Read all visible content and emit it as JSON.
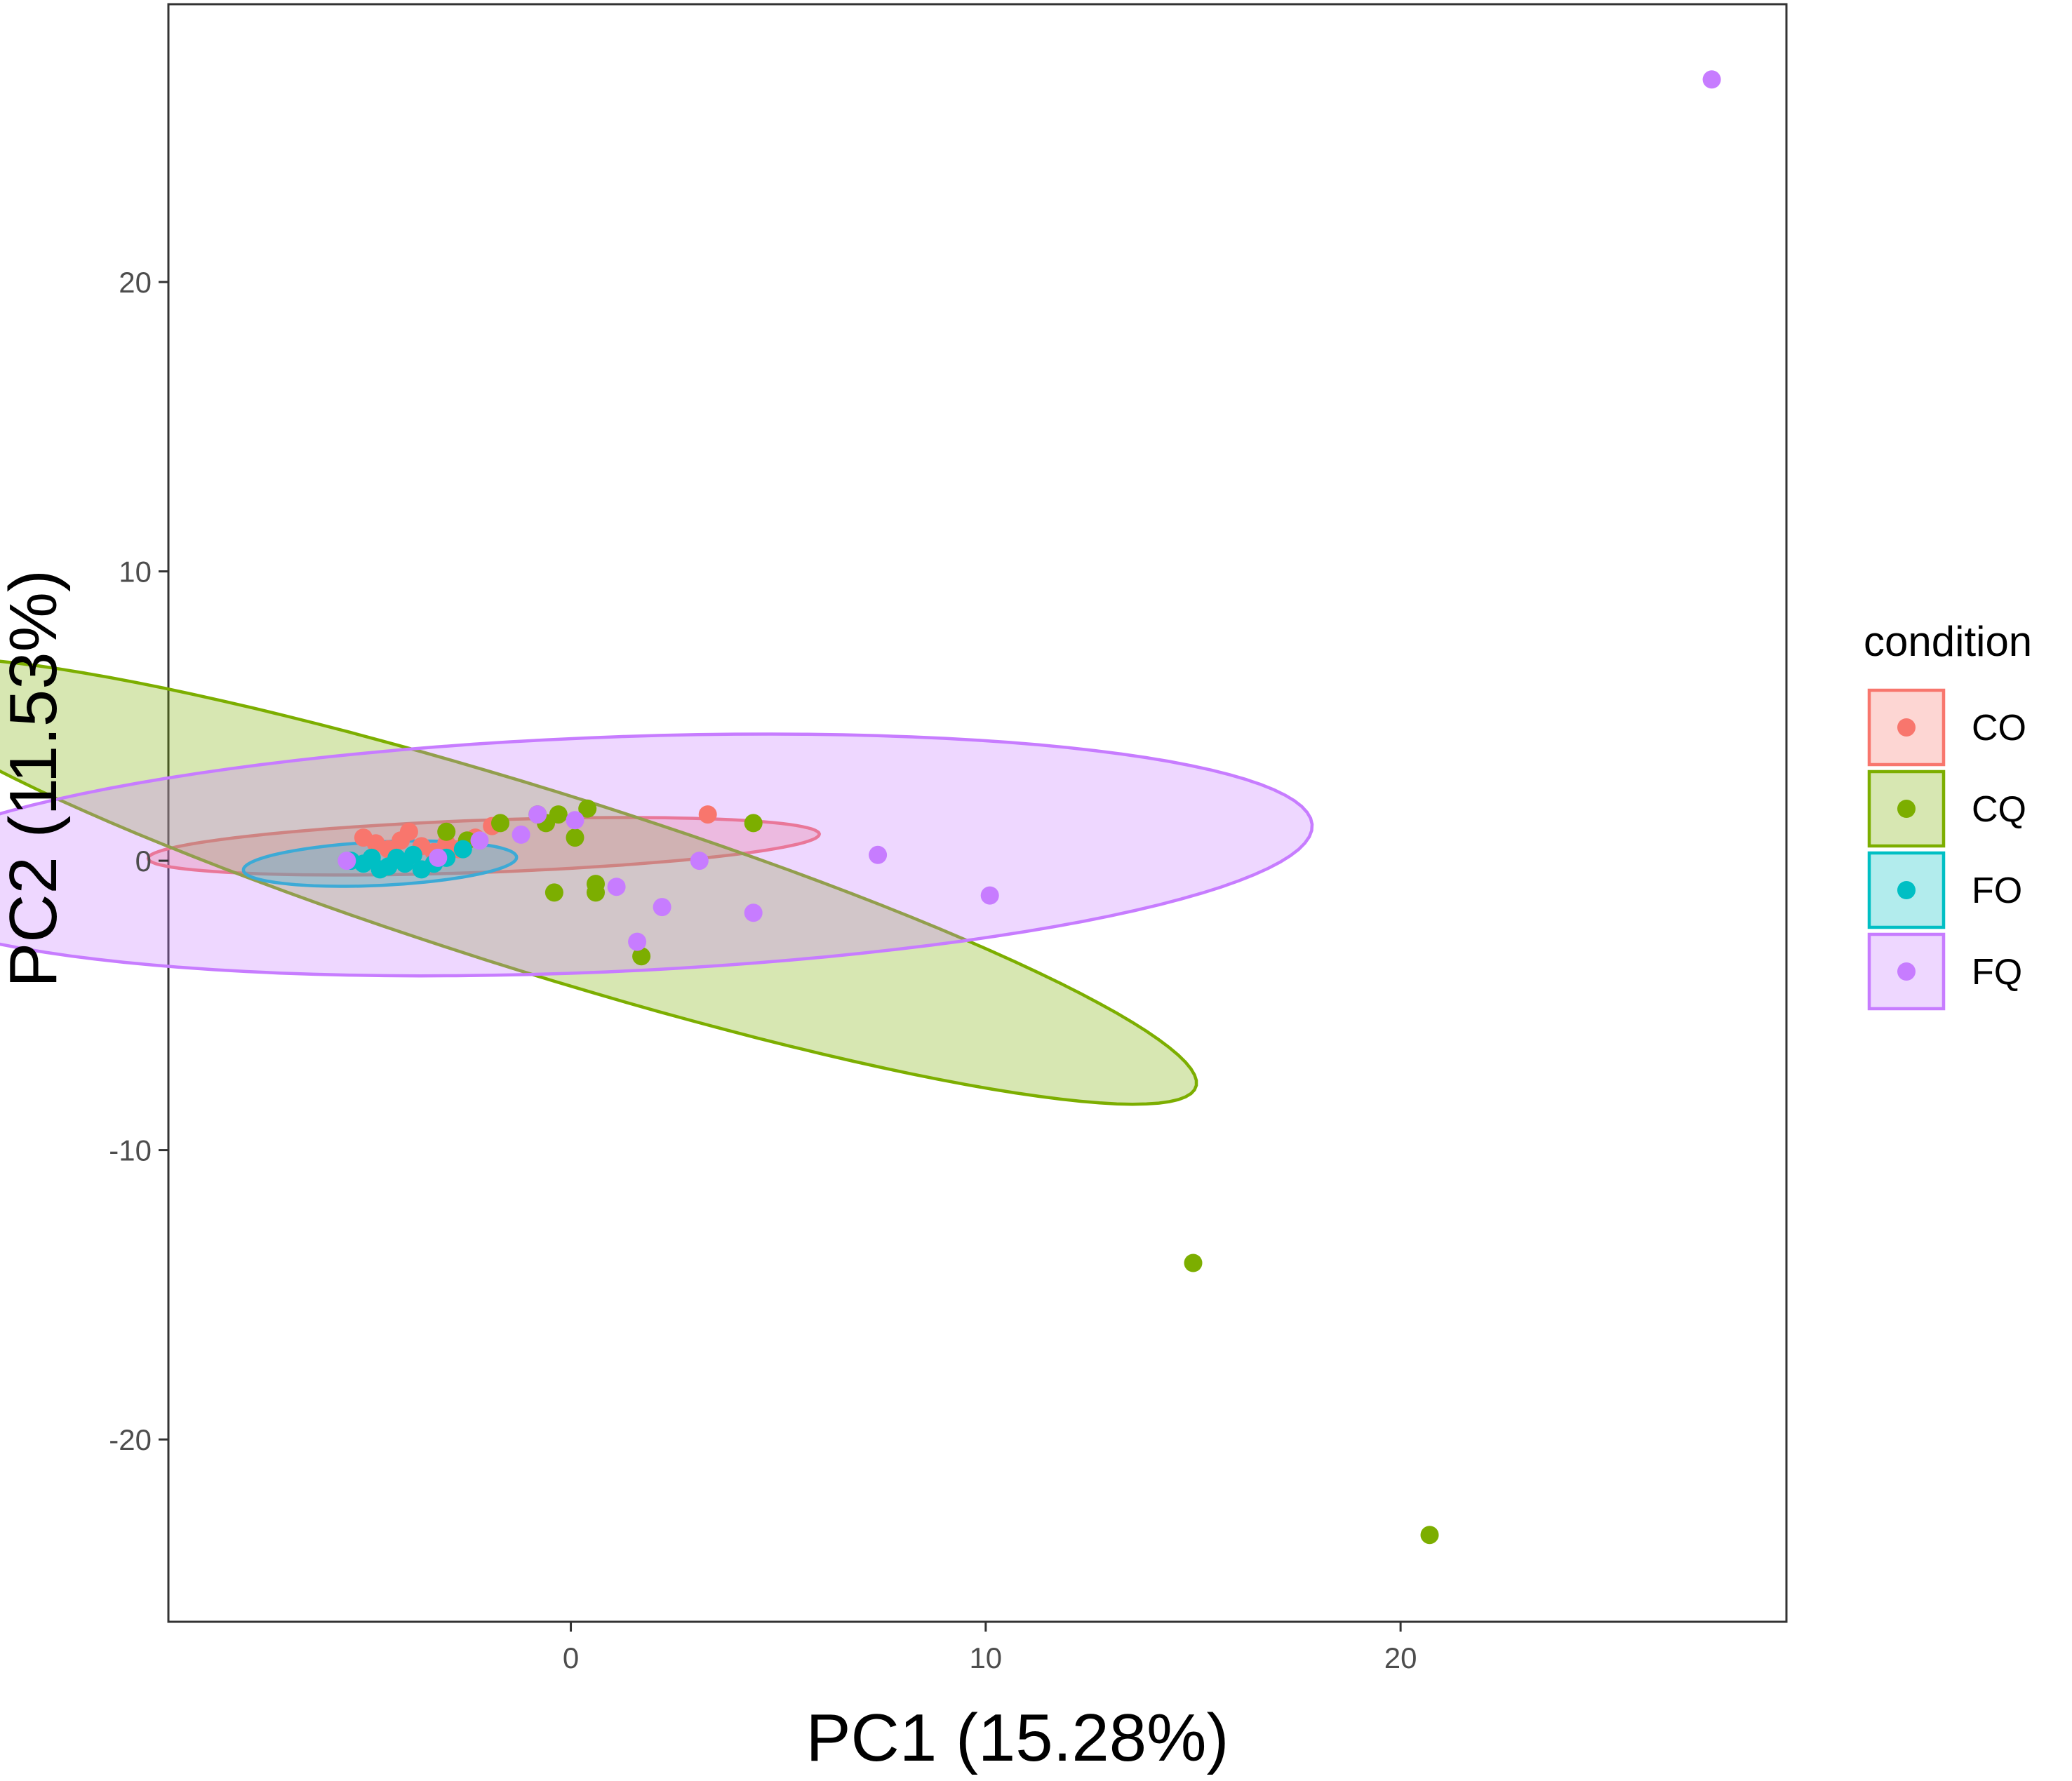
{
  "chart_data": {
    "type": "scatter",
    "xlabel": "PC1 (15.28%)",
    "ylabel": "PC2 (11.53%)",
    "xlim": [
      -9.7,
      29.3
    ],
    "ylim": [
      -26.3,
      29.6
    ],
    "x_ticks": [
      0,
      10,
      20
    ],
    "y_ticks": [
      -20,
      -10,
      0,
      10,
      20
    ],
    "grid": false,
    "legend": {
      "title": "condition",
      "position": "right"
    },
    "series": [
      {
        "name": "CO",
        "color": "#F8766D",
        "points": [
          [
            -5.0,
            0.8
          ],
          [
            -4.7,
            0.6
          ],
          [
            -4.4,
            0.4
          ],
          [
            -4.1,
            0.7
          ],
          [
            -3.9,
            1.0
          ],
          [
            -3.6,
            0.5
          ],
          [
            -3.3,
            0.3
          ],
          [
            -3.0,
            0.6
          ],
          [
            -2.7,
            0.4
          ],
          [
            -2.3,
            0.8
          ],
          [
            -1.9,
            1.2
          ],
          [
            3.3,
            1.6
          ]
        ],
        "ellipse": {
          "center": [
            -2.1,
            0.5
          ],
          "rx": 8.1,
          "ry": 0.9,
          "angle_deg": 3
        }
      },
      {
        "name": "CQ",
        "color": "#7CAE00",
        "points": [
          [
            -3.0,
            1.0
          ],
          [
            -2.5,
            0.7
          ],
          [
            -1.7,
            1.3
          ],
          [
            -0.8,
            1.6
          ],
          [
            -0.6,
            1.3
          ],
          [
            -0.3,
            1.6
          ],
          [
            0.1,
            0.8
          ],
          [
            0.4,
            1.8
          ],
          [
            -0.4,
            -1.1
          ],
          [
            0.6,
            -0.8
          ],
          [
            0.6,
            -1.1
          ],
          [
            1.7,
            -3.3
          ],
          [
            4.4,
            1.3
          ],
          [
            15.0,
            -13.9
          ],
          [
            20.7,
            -23.3
          ]
        ],
        "ellipse": {
          "center": [
            -0.8,
            -0.7
          ],
          "rx": 17.4,
          "ry": 3.0,
          "angle_deg": -24.5
        }
      },
      {
        "name": "FO",
        "color": "#00BFC4",
        "points": [
          [
            -5.3,
            0.0
          ],
          [
            -5.0,
            -0.1
          ],
          [
            -4.8,
            0.1
          ],
          [
            -4.6,
            -0.3
          ],
          [
            -4.4,
            -0.2
          ],
          [
            -4.2,
            0.1
          ],
          [
            -4.0,
            -0.1
          ],
          [
            -3.8,
            0.2
          ],
          [
            -3.6,
            -0.3
          ],
          [
            -3.3,
            -0.1
          ],
          [
            -3.0,
            0.1
          ],
          [
            -2.6,
            0.4
          ]
        ],
        "ellipse": {
          "center": [
            -4.6,
            -0.1
          ],
          "rx": 3.3,
          "ry": 0.75,
          "angle_deg": 4
        }
      },
      {
        "name": "FQ",
        "color": "#C77CFF",
        "points": [
          [
            -5.4,
            0.0
          ],
          [
            -3.2,
            0.1
          ],
          [
            -2.2,
            0.7
          ],
          [
            -1.2,
            0.9
          ],
          [
            -0.8,
            1.6
          ],
          [
            0.1,
            1.4
          ],
          [
            1.1,
            -0.9
          ],
          [
            1.6,
            -2.8
          ],
          [
            2.2,
            -1.6
          ],
          [
            3.1,
            0.0
          ],
          [
            4.4,
            -1.8
          ],
          [
            7.4,
            0.2
          ],
          [
            10.1,
            -1.2
          ],
          [
            27.5,
            27.0
          ]
        ],
        "ellipse": {
          "center": [
            0.6,
            0.2
          ],
          "rx": 17.3,
          "ry": 4.05,
          "angle_deg": 3.5
        }
      }
    ]
  }
}
